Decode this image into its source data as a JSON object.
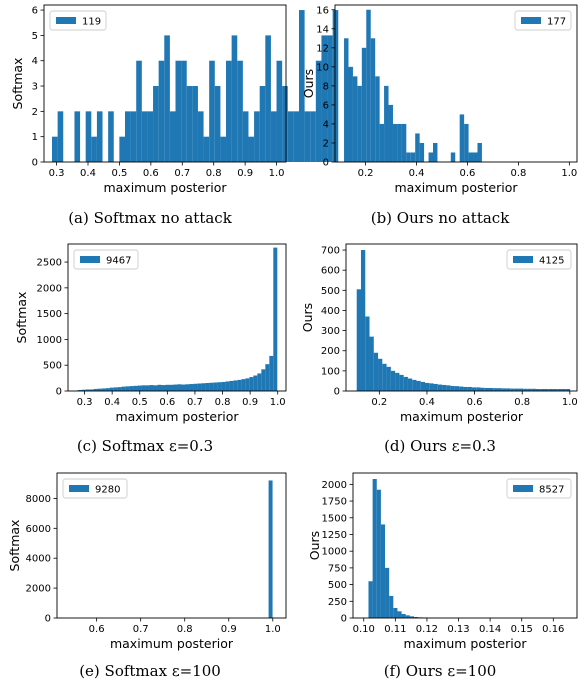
{
  "colors": {
    "bar": "#1f77b4",
    "axis": "#000000",
    "legend_border": "#cccccc"
  },
  "chart_data": [
    {
      "id": "a",
      "type": "bar",
      "caption": "(a) Softmax no attack",
      "xlabel": "maximum posterior",
      "ylabel": "Softmax",
      "xlim": [
        0.26,
        1.03
      ],
      "ylim": [
        0,
        6.2
      ],
      "xticks": [
        0.3,
        0.4,
        0.5,
        0.6,
        0.7,
        0.8,
        0.9,
        1.0
      ],
      "xtick_labels": [
        "0.3",
        "0.4",
        "0.5",
        "0.6",
        "0.7",
        "0.8",
        "0.9",
        "1.0"
      ],
      "yticks": [
        0,
        1,
        2,
        3,
        4,
        5,
        6
      ],
      "ytick_labels": [
        "0",
        "1",
        "2",
        "3",
        "4",
        "5",
        "6"
      ],
      "legend": {
        "label": "119",
        "position": "upper-left"
      },
      "bin_start": 0.2855,
      "bin_width": 0.01786,
      "values": [
        1,
        2,
        0,
        0,
        2,
        0,
        2,
        1,
        2,
        0,
        2,
        0,
        1,
        2,
        2,
        4,
        2,
        2,
        3,
        4,
        5,
        2,
        4,
        4,
        3,
        3,
        2,
        1,
        4,
        3,
        1,
        4,
        5,
        4,
        2,
        1,
        2,
        3,
        5,
        2,
        4,
        3,
        2,
        2,
        6,
        2,
        2,
        4,
        5,
        5,
        6
      ]
    },
    {
      "id": "b",
      "type": "bar",
      "caption": "(b) Ours no attack",
      "xlabel": "maximum posterior",
      "ylabel": "Ours",
      "xlim": [
        0.08,
        1.03
      ],
      "ylim": [
        0,
        16.5
      ],
      "xticks": [
        0.2,
        0.4,
        0.6,
        0.8,
        1.0
      ],
      "xtick_labels": [
        "0.2",
        "0.4",
        "0.6",
        "0.8",
        "1.0"
      ],
      "yticks": [
        0,
        2,
        4,
        6,
        8,
        10,
        12,
        14,
        16
      ],
      "ytick_labels": [
        "0",
        "2",
        "4",
        "6",
        "8",
        "10",
        "12",
        "14",
        "16"
      ],
      "legend": {
        "label": "177",
        "position": "upper-right"
      },
      "bin_start": 0.1155,
      "bin_width": 0.01746,
      "values": [
        13,
        10,
        9,
        8,
        12,
        16,
        13,
        9,
        4,
        8,
        6,
        4,
        4,
        4,
        1,
        1,
        3,
        2,
        0,
        1,
        2,
        0,
        0,
        0,
        1,
        0,
        5,
        4,
        1,
        1,
        2,
        0,
        0,
        0,
        0,
        0,
        0,
        0,
        0,
        0,
        0,
        0,
        0,
        0,
        0,
        0,
        0,
        0,
        0,
        0,
        0
      ]
    },
    {
      "id": "c",
      "type": "bar",
      "caption": "(c) Softmax ε=0.3",
      "xlabel": "maximum posterior",
      "ylabel": "Softmax",
      "xlim": [
        0.24,
        1.03
      ],
      "ylim": [
        0,
        2850
      ],
      "xticks": [
        0.3,
        0.4,
        0.5,
        0.6,
        0.7,
        0.8,
        0.9,
        1.0
      ],
      "xtick_labels": [
        "0.3",
        "0.4",
        "0.5",
        "0.6",
        "0.7",
        "0.8",
        "0.9",
        "1.0"
      ],
      "yticks": [
        0,
        500,
        1000,
        1500,
        2000,
        2500
      ],
      "ytick_labels": [
        "0",
        "500",
        "1000",
        "1500",
        "2000",
        "2500"
      ],
      "legend": {
        "label": "9467",
        "position": "upper-left"
      },
      "bin_start": 0.275,
      "bin_width": 0.01447,
      "values": [
        20,
        25,
        30,
        30,
        40,
        45,
        50,
        55,
        65,
        70,
        75,
        85,
        90,
        95,
        100,
        105,
        110,
        110,
        115,
        110,
        120,
        115,
        120,
        120,
        125,
        130,
        125,
        130,
        135,
        140,
        145,
        150,
        155,
        160,
        165,
        170,
        175,
        185,
        195,
        205,
        215,
        230,
        245,
        270,
        300,
        340,
        420,
        520,
        680,
        2780
      ]
    },
    {
      "id": "d",
      "type": "bar",
      "caption": "(d) Ours ε=0.3",
      "xlabel": "maximum posterior",
      "ylabel": "Ours",
      "xlim": [
        0.06,
        1.03
      ],
      "ylim": [
        0,
        730
      ],
      "xticks": [
        0.2,
        0.4,
        0.6,
        0.8,
        1.0
      ],
      "xtick_labels": [
        "0.2",
        "0.4",
        "0.6",
        "0.8",
        "1.0"
      ],
      "yticks": [
        0,
        100,
        200,
        300,
        400,
        500,
        600,
        700
      ],
      "ytick_labels": [
        "0",
        "100",
        "200",
        "300",
        "400",
        "500",
        "600",
        "700"
      ],
      "legend": {
        "label": "4125",
        "position": "upper-right"
      },
      "bin_start": 0.105,
      "bin_width": 0.01792,
      "values": [
        505,
        700,
        370,
        270,
        190,
        160,
        135,
        120,
        100,
        90,
        80,
        70,
        62,
        55,
        50,
        45,
        40,
        38,
        35,
        32,
        30,
        28,
        25,
        24,
        22,
        20,
        20,
        18,
        18,
        16,
        15,
        15,
        14,
        14,
        13,
        13,
        12,
        12,
        12,
        11,
        11,
        11,
        10,
        10,
        10,
        10,
        10,
        10,
        10,
        10
      ]
    },
    {
      "id": "e",
      "type": "bar",
      "caption": "(e) Softmax ε=100",
      "xlabel": "maximum posterior",
      "ylabel": "Softmax",
      "xlim": [
        0.51,
        1.03
      ],
      "ylim": [
        0,
        9700
      ],
      "xticks": [
        0.6,
        0.7,
        0.8,
        0.9,
        1.0
      ],
      "xtick_labels": [
        "0.6",
        "0.7",
        "0.8",
        "0.9",
        "1.0"
      ],
      "yticks": [
        0,
        2000,
        4000,
        6000,
        8000
      ],
      "ytick_labels": [
        "0",
        "2000",
        "4000",
        "6000",
        "8000"
      ],
      "legend": {
        "label": "9280",
        "position": "upper-left"
      },
      "bin_start": 0.9905,
      "bin_width": 0.009,
      "values": [
        9200
      ]
    },
    {
      "id": "f",
      "type": "bar",
      "caption": "(f) Ours ε=100",
      "xlabel": "maximum posterior",
      "ylabel": "Ours",
      "xlim": [
        0.0966,
        0.1675
      ],
      "ylim": [
        0,
        2170
      ],
      "xticks": [
        0.1,
        0.11,
        0.12,
        0.13,
        0.14,
        0.15,
        0.16
      ],
      "xtick_labels": [
        "0.10",
        "0.11",
        "0.12",
        "0.13",
        "0.14",
        "0.15",
        "0.16"
      ],
      "yticks": [
        0,
        250,
        500,
        750,
        1000,
        1250,
        1500,
        1750,
        2000
      ],
      "ytick_labels": [
        "0",
        "250",
        "500",
        "750",
        "1000",
        "1250",
        "1500",
        "1750",
        "2000"
      ],
      "legend": {
        "label": "8527",
        "position": "upper-right"
      },
      "bin_start": 0.1015,
      "bin_width": 0.00131,
      "values": [
        550,
        2080,
        1920,
        1400,
        750,
        330,
        150,
        100,
        60,
        40,
        25,
        15,
        10,
        8,
        5,
        5,
        4,
        3,
        3,
        2,
        2,
        2,
        1,
        1,
        1,
        1,
        1,
        1,
        1,
        1,
        1,
        1,
        1,
        1,
        1,
        1,
        1,
        1,
        1,
        1,
        1,
        1,
        1,
        1,
        1,
        1,
        1,
        1,
        1,
        1
      ]
    }
  ]
}
